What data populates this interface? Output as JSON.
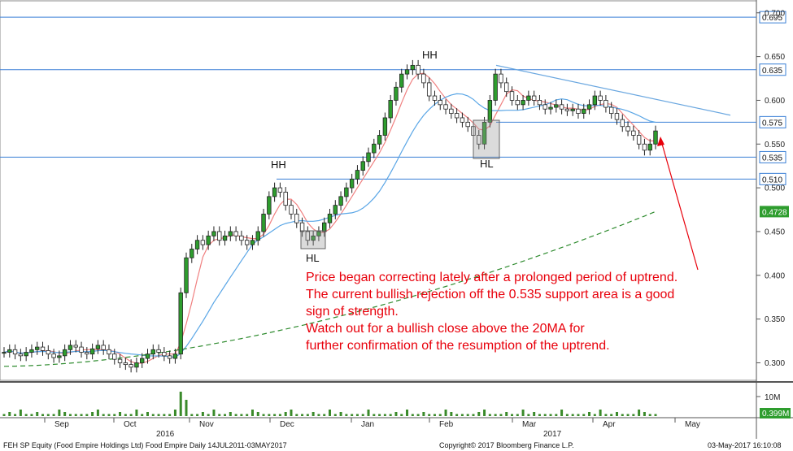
{
  "chart_data": {
    "type": "candlestick",
    "title": "FEH SP Equity (Food Empire Holdings Ltd) Food Empire Daily 14JUL2011-03MAY2017",
    "copyright": "Copyright© 2017 Bloomberg Finance L.P.",
    "timestamp": "03-May-2017 16:10:08",
    "ylim": [
      0.28,
      0.71
    ],
    "y_ticks": [
      "0.300",
      "0.350",
      "0.400",
      "0.450",
      "0.500",
      "0.550",
      "0.600",
      "0.650",
      "0.700"
    ],
    "x_months": [
      "Sep",
      "Oct",
      "Nov",
      "Dec",
      "Jan",
      "Feb",
      "Mar",
      "Apr",
      "May"
    ],
    "x_years": [
      "2016",
      "2017"
    ],
    "horizontal_levels": [
      "0.695",
      "0.635",
      "0.575",
      "0.535",
      "0.510"
    ],
    "current_labels": {
      "ma200": "0.4728",
      "volume_scale": "10M",
      "volume_last": "0.399M"
    },
    "annotations": {
      "hh1": "HH",
      "hh2": "HH",
      "hl1": "HL",
      "hl2": "HL",
      "note_lines": [
        "Price began correcting lately after a prolonged period of uptrend.",
        "The current bullish rejection off the 0.535 support area is a good",
        "sign of strength.",
        "Watch out for a bullish close above the 20MA for",
        "further confirmation of the resumption of the uptrend."
      ]
    },
    "series": [
      {
        "kind": "ohlc",
        "note": "daily price bars, from 0.300 base to 0.64 peak then pullback to 0.545",
        "closes": [
          0.312,
          0.315,
          0.31,
          0.308,
          0.312,
          0.315,
          0.318,
          0.314,
          0.31,
          0.306,
          0.308,
          0.315,
          0.32,
          0.318,
          0.312,
          0.31,
          0.316,
          0.32,
          0.315,
          0.31,
          0.304,
          0.3,
          0.298,
          0.295,
          0.3,
          0.305,
          0.31,
          0.315,
          0.312,
          0.308,
          0.305,
          0.31,
          0.38,
          0.42,
          0.43,
          0.44,
          0.435,
          0.445,
          0.45,
          0.44,
          0.445,
          0.45,
          0.445,
          0.44,
          0.435,
          0.44,
          0.45,
          0.47,
          0.49,
          0.5,
          0.495,
          0.48,
          0.47,
          0.46,
          0.45,
          0.44,
          0.445,
          0.45,
          0.46,
          0.47,
          0.48,
          0.49,
          0.5,
          0.51,
          0.52,
          0.53,
          0.54,
          0.55,
          0.56,
          0.58,
          0.6,
          0.615,
          0.63,
          0.635,
          0.64,
          0.63,
          0.62,
          0.605,
          0.6,
          0.595,
          0.59,
          0.585,
          0.58,
          0.575,
          0.57,
          0.56,
          0.55,
          0.575,
          0.6,
          0.63,
          0.62,
          0.61,
          0.6,
          0.595,
          0.6,
          0.605,
          0.6,
          0.595,
          0.59,
          0.592,
          0.595,
          0.59,
          0.588,
          0.59,
          0.585,
          0.59,
          0.595,
          0.605,
          0.6,
          0.592,
          0.585,
          0.578,
          0.57,
          0.565,
          0.56,
          0.55,
          0.543,
          0.55,
          0.565
        ]
      },
      {
        "name": "20MA",
        "color": "#f08080"
      },
      {
        "name": "50MA",
        "color": "#5aa6e6"
      },
      {
        "name": "200MA",
        "color": "#2e8b2e",
        "dashed": true,
        "last": 0.4728
      }
    ]
  }
}
